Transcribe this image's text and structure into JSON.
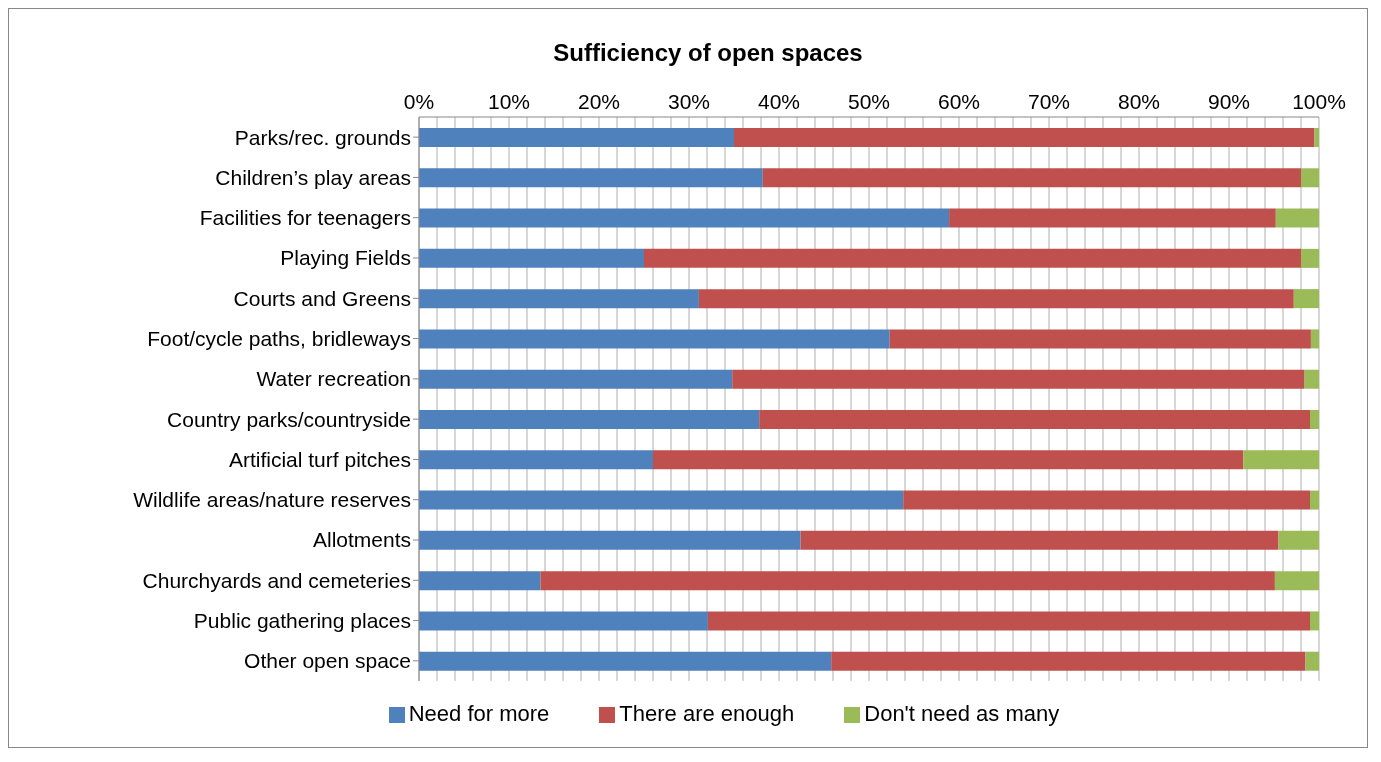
{
  "chart_data": {
    "type": "bar",
    "orientation": "horizontal",
    "stacked": true,
    "title": "Sufficiency of open spaces",
    "categories": [
      "Parks/rec. grounds",
      "Children’s play areas",
      "Facilities for teenagers",
      "Playing Fields",
      "Courts and Greens",
      "Foot/cycle paths, bridleways",
      "Water recreation",
      "Country parks/countryside",
      "Artificial turf pitches",
      "Wildlife areas/nature reserves",
      "Allotments",
      "Churchyards and cemeteries",
      "Public gathering places",
      "Other open space"
    ],
    "series": [
      {
        "name": "Need for more",
        "color": "#4f81bd",
        "values": [
          35.0,
          38.2,
          58.9,
          25.0,
          31.1,
          52.3,
          34.8,
          37.8,
          26.0,
          53.8,
          42.4,
          13.5,
          32.1,
          45.8
        ]
      },
      {
        "name": "There are enough",
        "color": "#c0504d",
        "values": [
          64.5,
          59.8,
          36.3,
          73.0,
          66.1,
          46.8,
          63.6,
          61.2,
          65.6,
          45.2,
          53.1,
          81.6,
          66.9,
          52.7
        ]
      },
      {
        "name": "Don't need as many",
        "color": "#9bbb59",
        "values": [
          0.5,
          2.0,
          4.8,
          2.0,
          2.8,
          0.9,
          1.6,
          1.0,
          8.4,
          1.0,
          4.5,
          4.9,
          1.0,
          1.5
        ]
      }
    ],
    "xlim": [
      0,
      100
    ],
    "xticks": [
      {
        "value": 0,
        "label": "0%"
      },
      {
        "value": 2,
        "label": null
      },
      {
        "value": 4,
        "label": null
      },
      {
        "value": 6,
        "label": null
      },
      {
        "value": 8,
        "label": null
      },
      {
        "value": 10,
        "label": "10%"
      },
      {
        "value": 12,
        "label": null
      },
      {
        "value": 14,
        "label": null
      },
      {
        "value": 16,
        "label": null
      },
      {
        "value": 18,
        "label": null
      },
      {
        "value": 20,
        "label": "20%"
      },
      {
        "value": 22,
        "label": null
      },
      {
        "value": 24,
        "label": null
      },
      {
        "value": 26,
        "label": null
      },
      {
        "value": 28,
        "label": null
      },
      {
        "value": 30,
        "label": "30%"
      },
      {
        "value": 32,
        "label": null
      },
      {
        "value": 34,
        "label": null
      },
      {
        "value": 36,
        "label": null
      },
      {
        "value": 38,
        "label": null
      },
      {
        "value": 40,
        "label": "40%"
      },
      {
        "value": 42,
        "label": null
      },
      {
        "value": 44,
        "label": null
      },
      {
        "value": 46,
        "label": null
      },
      {
        "value": 48,
        "label": null
      },
      {
        "value": 50,
        "label": "50%"
      },
      {
        "value": 52,
        "label": null
      },
      {
        "value": 54,
        "label": null
      },
      {
        "value": 56,
        "label": null
      },
      {
        "value": 58,
        "label": null
      },
      {
        "value": 60,
        "label": "60%"
      },
      {
        "value": 62,
        "label": null
      },
      {
        "value": 64,
        "label": null
      },
      {
        "value": 66,
        "label": null
      },
      {
        "value": 68,
        "label": null
      },
      {
        "value": 70,
        "label": "70%"
      },
      {
        "value": 72,
        "label": null
      },
      {
        "value": 74,
        "label": null
      },
      {
        "value": 76,
        "label": null
      },
      {
        "value": 78,
        "label": null
      },
      {
        "value": 80,
        "label": "80%"
      },
      {
        "value": 82,
        "label": null
      },
      {
        "value": 84,
        "label": null
      },
      {
        "value": 86,
        "label": null
      },
      {
        "value": 88,
        "label": null
      },
      {
        "value": 90,
        "label": "90%"
      },
      {
        "value": 92,
        "label": null
      },
      {
        "value": 94,
        "label": null
      },
      {
        "value": 96,
        "label": null
      },
      {
        "value": 98,
        "label": null
      },
      {
        "value": 100,
        "label": "100%"
      }
    ],
    "grid": "x",
    "legend": "bottom"
  }
}
